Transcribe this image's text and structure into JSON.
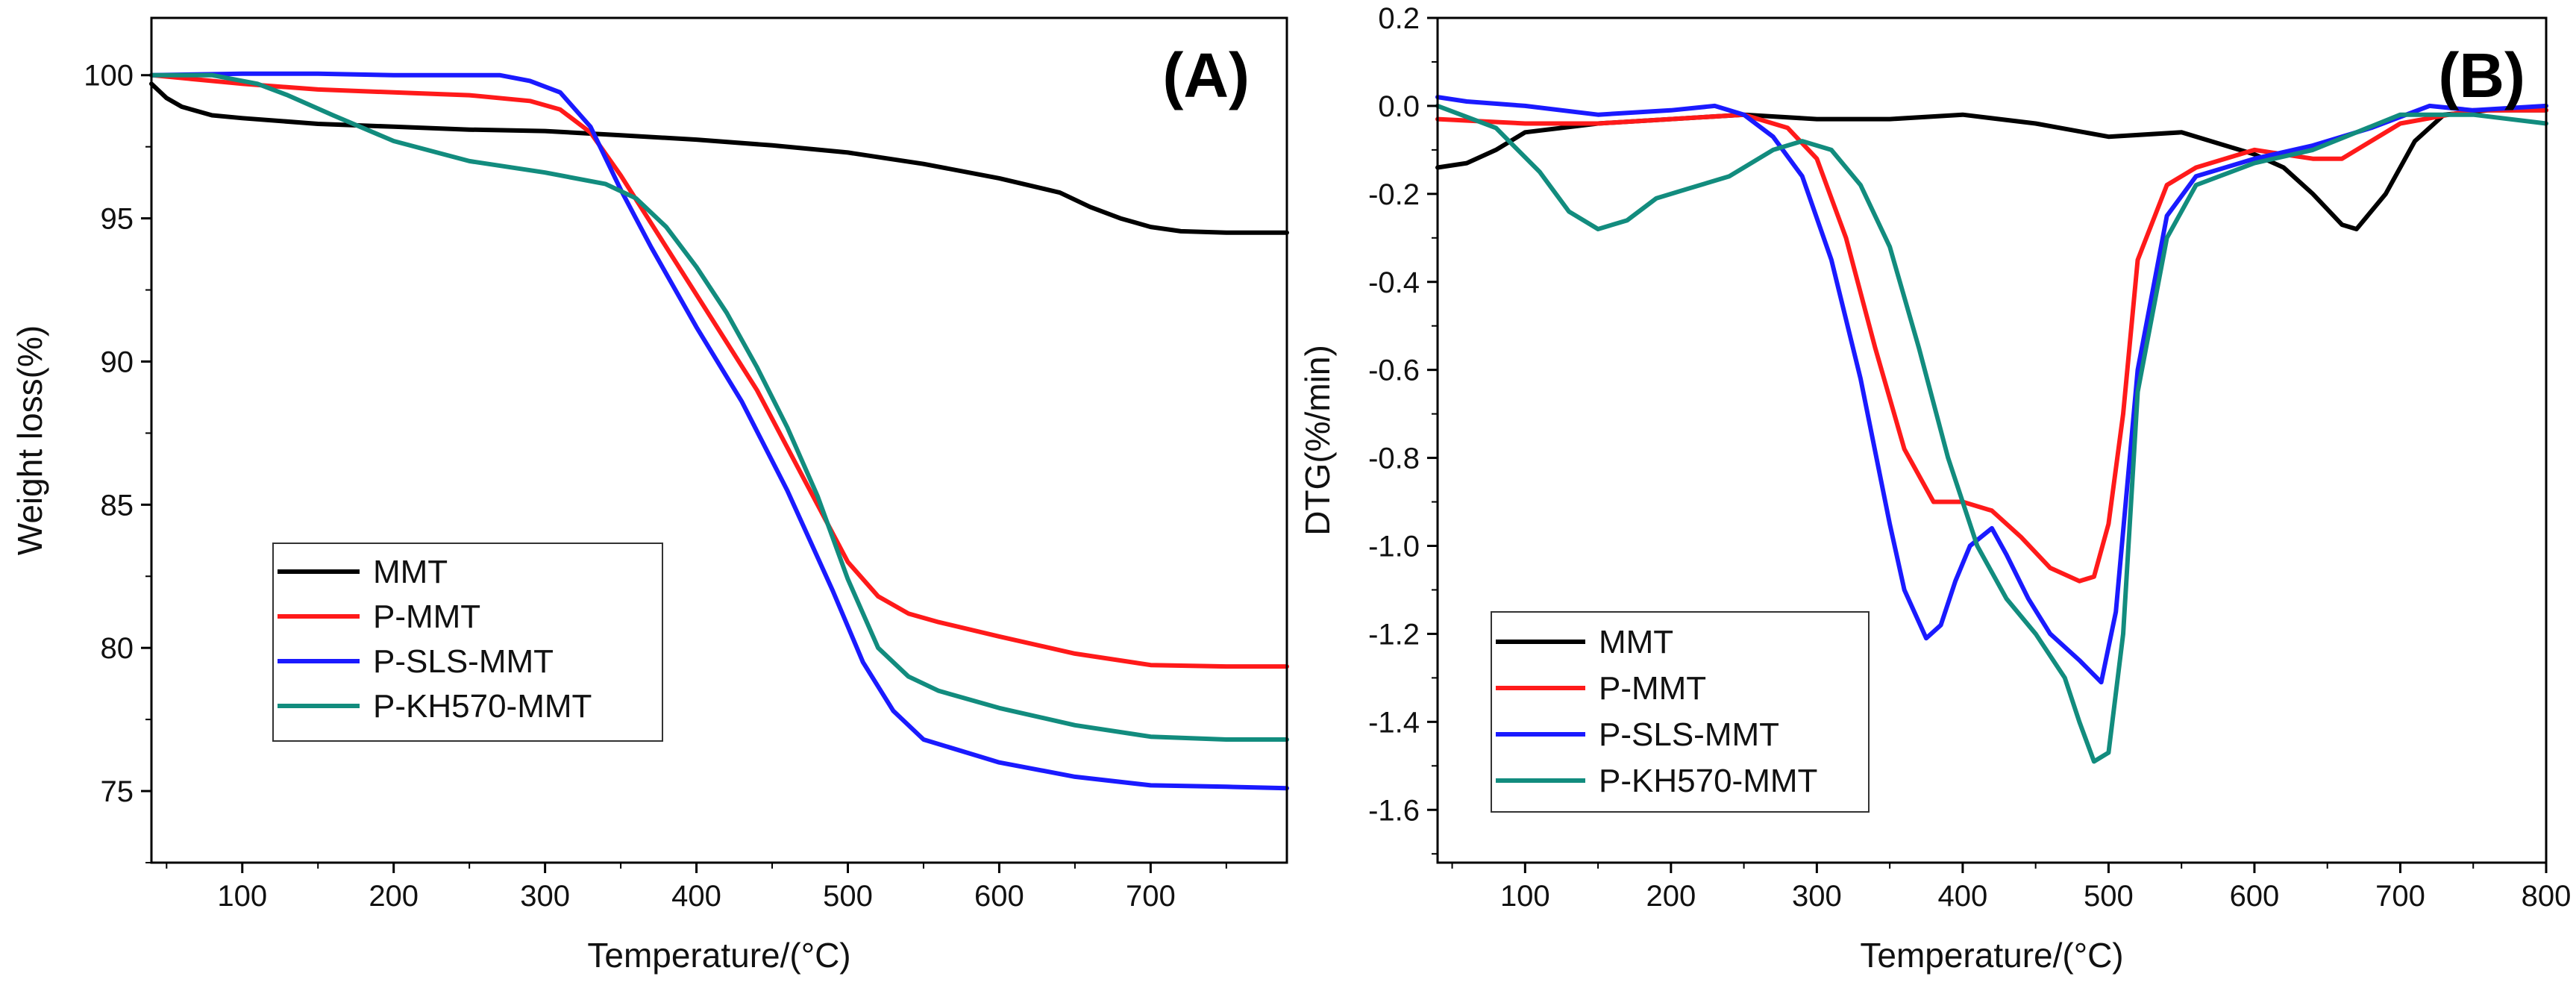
{
  "colors": {
    "MMT": "#000000",
    "P-MMT": "#ff1a1a",
    "P-SLS-MMT": "#1a1aff",
    "P-KH570-MMT": "#128c7e"
  },
  "chart_data": [
    {
      "type": "line",
      "panel_label": "(A)",
      "title": "",
      "xlabel": "Temperature/(°C)",
      "ylabel": "Weight loss(%)",
      "xlim": [
        40,
        790
      ],
      "ylim": [
        72.5,
        102
      ],
      "xticks": [
        100,
        200,
        300,
        400,
        500,
        600,
        700
      ],
      "yticks": [
        75,
        80,
        85,
        90,
        95,
        100
      ],
      "grid": false,
      "legend_position": "bottom-left",
      "legend": [
        "MMT",
        "P-MMT",
        "P-SLS-MMT",
        "P-KH570-MMT"
      ],
      "series": [
        {
          "name": "MMT",
          "x": [
            40,
            50,
            60,
            80,
            100,
            150,
            200,
            250,
            300,
            350,
            400,
            450,
            500,
            550,
            600,
            640,
            660,
            680,
            700,
            720,
            750,
            790
          ],
          "y": [
            99.7,
            99.2,
            98.9,
            98.6,
            98.5,
            98.3,
            98.2,
            98.1,
            98.05,
            97.9,
            97.75,
            97.55,
            97.3,
            96.9,
            96.4,
            95.9,
            95.4,
            95.0,
            94.7,
            94.55,
            94.5,
            94.5
          ]
        },
        {
          "name": "P-MMT",
          "x": [
            40,
            100,
            150,
            200,
            250,
            290,
            310,
            330,
            350,
            380,
            410,
            440,
            470,
            500,
            520,
            540,
            560,
            600,
            650,
            700,
            750,
            790
          ],
          "y": [
            100,
            99.7,
            99.5,
            99.4,
            99.3,
            99.1,
            98.8,
            98.0,
            96.5,
            94.0,
            91.5,
            89.0,
            86.0,
            83.0,
            81.8,
            81.2,
            80.9,
            80.4,
            79.8,
            79.4,
            79.35,
            79.35
          ]
        },
        {
          "name": "P-SLS-MMT",
          "x": [
            40,
            100,
            150,
            200,
            250,
            270,
            290,
            310,
            330,
            350,
            370,
            400,
            430,
            460,
            490,
            510,
            530,
            550,
            600,
            650,
            700,
            750,
            790
          ],
          "y": [
            100,
            100.05,
            100.05,
            100.0,
            100.0,
            100.0,
            99.8,
            99.4,
            98.2,
            96.0,
            94.0,
            91.2,
            88.6,
            85.5,
            82.0,
            79.5,
            77.8,
            76.8,
            76.0,
            75.5,
            75.2,
            75.15,
            75.1
          ]
        },
        {
          "name": "P-KH570-MMT",
          "x": [
            40,
            80,
            110,
            130,
            160,
            200,
            250,
            300,
            340,
            360,
            380,
            400,
            420,
            440,
            460,
            480,
            500,
            520,
            540,
            560,
            600,
            650,
            700,
            750,
            790
          ],
          "y": [
            100,
            100.0,
            99.7,
            99.3,
            98.6,
            97.7,
            97.0,
            96.6,
            96.2,
            95.7,
            94.7,
            93.3,
            91.7,
            89.8,
            87.7,
            85.3,
            82.4,
            80.0,
            79.0,
            78.5,
            77.9,
            77.3,
            76.9,
            76.8,
            76.8
          ]
        }
      ]
    },
    {
      "type": "line",
      "panel_label": "(B)",
      "title": "",
      "xlabel": "Temperature/(°C)",
      "ylabel": "DTG(%/min)",
      "xlim": [
        40,
        800
      ],
      "ylim": [
        -1.72,
        0.2
      ],
      "xticks": [
        100,
        200,
        300,
        400,
        500,
        600,
        700,
        800
      ],
      "yticks": [
        0.2,
        0.0,
        -0.2,
        -0.4,
        -0.6,
        -0.8,
        -1.0,
        -1.2,
        -1.4,
        -1.6
      ],
      "ytick_labels": [
        "0.2",
        "0.0",
        "-0.2",
        "-0.4",
        "-0.6",
        "-0.8",
        "-1.0",
        "-1.2",
        "-1.4",
        "-1.6"
      ],
      "grid": false,
      "legend_position": "bottom-left",
      "legend": [
        "MMT",
        "P-MMT",
        "P-SLS-MMT",
        "P-KH570-MMT"
      ],
      "series": [
        {
          "name": "MMT",
          "x": [
            40,
            60,
            80,
            100,
            150,
            200,
            250,
            300,
            350,
            400,
            450,
            500,
            550,
            580,
            600,
            620,
            640,
            660,
            670,
            690,
            710,
            730,
            760,
            800
          ],
          "y": [
            -0.14,
            -0.13,
            -0.1,
            -0.06,
            -0.04,
            -0.03,
            -0.02,
            -0.03,
            -0.03,
            -0.02,
            -0.04,
            -0.07,
            -0.06,
            -0.09,
            -0.11,
            -0.14,
            -0.2,
            -0.27,
            -0.28,
            -0.2,
            -0.08,
            -0.02,
            -0.01,
            -0.01
          ]
        },
        {
          "name": "P-MMT",
          "x": [
            40,
            100,
            150,
            200,
            250,
            280,
            300,
            320,
            340,
            360,
            380,
            400,
            420,
            440,
            460,
            480,
            490,
            500,
            510,
            520,
            540,
            560,
            600,
            640,
            660,
            700,
            750,
            800
          ],
          "y": [
            -0.03,
            -0.04,
            -0.04,
            -0.03,
            -0.02,
            -0.05,
            -0.12,
            -0.3,
            -0.55,
            -0.78,
            -0.9,
            -0.9,
            -0.92,
            -0.98,
            -1.05,
            -1.08,
            -1.07,
            -0.95,
            -0.7,
            -0.35,
            -0.18,
            -0.14,
            -0.1,
            -0.12,
            -0.12,
            -0.04,
            -0.01,
            -0.01
          ]
        },
        {
          "name": "P-SLS-MMT",
          "x": [
            40,
            60,
            100,
            150,
            200,
            230,
            250,
            270,
            290,
            310,
            330,
            350,
            360,
            375,
            385,
            395,
            405,
            420,
            430,
            445,
            460,
            480,
            495,
            505,
            520,
            540,
            560,
            600,
            640,
            680,
            720,
            750,
            800
          ],
          "y": [
            0.02,
            0.01,
            0.0,
            -0.02,
            -0.01,
            0.0,
            -0.02,
            -0.07,
            -0.16,
            -0.35,
            -0.62,
            -0.95,
            -1.1,
            -1.21,
            -1.18,
            -1.08,
            -1.0,
            -0.96,
            -1.02,
            -1.12,
            -1.2,
            -1.26,
            -1.31,
            -1.15,
            -0.6,
            -0.25,
            -0.16,
            -0.12,
            -0.09,
            -0.05,
            0.0,
            -0.01,
            0.0
          ]
        },
        {
          "name": "P-KH570-MMT",
          "x": [
            40,
            80,
            110,
            130,
            150,
            170,
            190,
            210,
            240,
            270,
            290,
            310,
            330,
            350,
            370,
            390,
            410,
            430,
            450,
            470,
            480,
            490,
            500,
            510,
            520,
            540,
            560,
            600,
            640,
            700,
            750,
            800
          ],
          "y": [
            0.0,
            -0.05,
            -0.15,
            -0.24,
            -0.28,
            -0.26,
            -0.21,
            -0.19,
            -0.16,
            -0.1,
            -0.08,
            -0.1,
            -0.18,
            -0.32,
            -0.55,
            -0.8,
            -1.0,
            -1.12,
            -1.2,
            -1.3,
            -1.4,
            -1.49,
            -1.47,
            -1.2,
            -0.65,
            -0.3,
            -0.18,
            -0.13,
            -0.1,
            -0.02,
            -0.02,
            -0.04
          ]
        }
      ]
    }
  ]
}
